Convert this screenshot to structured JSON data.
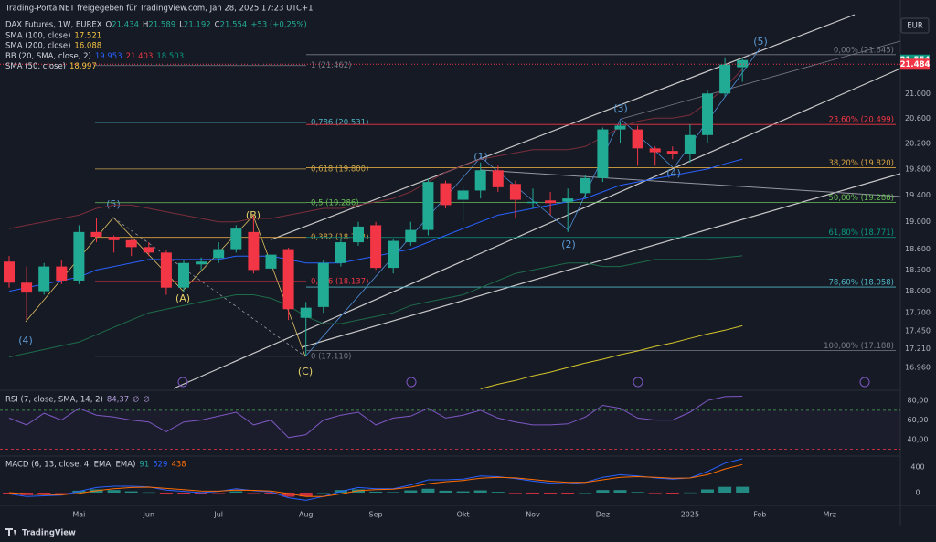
{
  "header": {
    "watermark": "Trading-PortalNET freigegeben für TradingView.com, Jan 28, 2025 17:23 UTC+1",
    "currency": "EUR",
    "footer": "TradingView"
  },
  "chart_data": [
    {
      "type": "candlestick",
      "title": "DAX Futures, 1W, EUREX",
      "ohlc_legend": {
        "labels": [
          "O",
          "H",
          "L",
          "C"
        ],
        "values": [
          21.434,
          21.589,
          21.192,
          21.554
        ],
        "change": "+53 (+0,25%)"
      },
      "indicators": [
        {
          "label": "SMA (100, close)",
          "values": [
            17.521
          ],
          "colors": [
            "#f5c542"
          ]
        },
        {
          "label": "SMA (200, close)",
          "values": [
            16.088
          ],
          "colors": [
            "#f5c542"
          ]
        },
        {
          "label": "BB (20, SMA, close, 2)",
          "values": [
            19.953,
            21.403,
            18.503
          ],
          "colors": [
            "#2962ff",
            "#f23645",
            "#089981"
          ]
        },
        {
          "label": "SMA (50, close)",
          "values": [
            18.997
          ],
          "colors": [
            "#f5c542"
          ]
        }
      ],
      "categories": [
        null,
        null,
        null,
        null,
        "Mai",
        null,
        null,
        null,
        "Jun",
        null,
        null,
        null,
        "Jul",
        null,
        null,
        null,
        null,
        "Aug",
        null,
        null,
        null,
        "Sep",
        null,
        null,
        null,
        null,
        "Okt",
        null,
        null,
        null,
        "Nov",
        null,
        null,
        null,
        "Dez",
        null,
        null,
        null,
        null,
        "2025",
        null,
        null,
        null,
        "Feb",
        null,
        null,
        null,
        "Mrz"
      ],
      "open": [
        18.42,
        18.12,
        18.0,
        18.35,
        18.15,
        18.85,
        18.78,
        18.73,
        18.63,
        18.55,
        18.05,
        18.38,
        18.47,
        18.6,
        18.85,
        18.32,
        18.6,
        17.63,
        17.78,
        18.4,
        18.7,
        18.95,
        18.33,
        18.7,
        18.88,
        19.58,
        19.33,
        19.47,
        19.78,
        19.57,
        19.28,
        19.32,
        19.3,
        19.43,
        19.66,
        20.42,
        20.42,
        20.12,
        20.08,
        20.03,
        20.33,
        21.0,
        21.434,
        null,
        null,
        null,
        null,
        null
      ],
      "high": [
        18.5,
        18.35,
        18.4,
        18.45,
        18.95,
        19.05,
        18.8,
        18.75,
        18.7,
        18.58,
        18.45,
        18.48,
        18.7,
        18.95,
        19.1,
        18.65,
        18.62,
        17.85,
        18.45,
        18.75,
        19.0,
        19.0,
        18.75,
        19.0,
        19.65,
        19.62,
        19.55,
        19.9,
        19.85,
        19.62,
        19.5,
        19.45,
        19.5,
        19.7,
        20.45,
        20.55,
        20.48,
        20.15,
        20.15,
        20.5,
        21.05,
        21.6,
        21.589,
        null,
        null,
        null,
        null,
        null
      ],
      "low": [
        18.05,
        17.6,
        17.95,
        18.1,
        18.1,
        18.7,
        18.55,
        18.5,
        18.5,
        17.95,
        17.98,
        18.3,
        18.4,
        18.55,
        18.25,
        18.25,
        17.6,
        17.11,
        17.7,
        18.35,
        18.65,
        18.3,
        18.25,
        18.65,
        18.8,
        19.2,
        19.0,
        19.35,
        19.45,
        19.05,
        19.2,
        19.1,
        18.85,
        19.35,
        19.6,
        20.2,
        19.85,
        19.85,
        19.95,
        19.9,
        20.2,
        20.95,
        21.192,
        null,
        null,
        null,
        null,
        null
      ],
      "close": [
        18.12,
        17.98,
        18.35,
        18.15,
        18.85,
        18.78,
        18.73,
        18.63,
        18.55,
        18.05,
        18.4,
        18.42,
        18.6,
        18.9,
        18.3,
        18.52,
        17.75,
        17.77,
        18.4,
        18.7,
        18.93,
        18.33,
        18.72,
        18.88,
        19.6,
        19.25,
        19.47,
        19.78,
        19.52,
        19.33,
        19.3,
        19.28,
        19.35,
        19.66,
        20.42,
        20.48,
        20.12,
        20.06,
        20.03,
        20.33,
        21.0,
        21.48,
        21.554,
        null,
        null,
        null,
        null,
        null
      ],
      "up_color": "#22ab94",
      "down_color": "#f23645",
      "overlays": [
        {
          "color": "#7a2e3a",
          "values": [
            18.9,
            18.95,
            19.0,
            19.05,
            19.1,
            19.2,
            19.25,
            19.25,
            19.2,
            19.15,
            19.1,
            19.05,
            19.0,
            19.0,
            19.05,
            19.05,
            19.1,
            19.15,
            19.2,
            19.2,
            19.25,
            19.3,
            19.35,
            19.45,
            19.6,
            19.75,
            19.85,
            19.95,
            20.0,
            20.05,
            20.1,
            20.1,
            20.1,
            20.15,
            20.3,
            20.45,
            20.55,
            20.6,
            20.6,
            20.65,
            20.85,
            21.1,
            21.403,
            null,
            null,
            null,
            null,
            null
          ]
        },
        {
          "color": "#2962ff",
          "values": [
            18.0,
            18.05,
            18.1,
            18.15,
            18.2,
            18.3,
            18.35,
            18.4,
            18.45,
            18.45,
            18.45,
            18.45,
            18.45,
            18.5,
            18.5,
            18.5,
            18.45,
            18.4,
            18.4,
            18.4,
            18.45,
            18.5,
            18.55,
            18.6,
            18.7,
            18.8,
            18.9,
            19.0,
            19.1,
            19.15,
            19.2,
            19.25,
            19.3,
            19.35,
            19.45,
            19.55,
            19.6,
            19.65,
            19.7,
            19.75,
            19.8,
            19.88,
            19.953,
            null,
            null,
            null,
            null,
            null
          ]
        },
        {
          "color": "#1e6b4a",
          "values": [
            17.1,
            17.15,
            17.2,
            17.25,
            17.3,
            17.4,
            17.5,
            17.6,
            17.7,
            17.75,
            17.8,
            17.85,
            17.9,
            17.95,
            17.95,
            17.9,
            17.8,
            17.65,
            17.55,
            17.55,
            17.6,
            17.65,
            17.7,
            17.8,
            17.85,
            17.9,
            17.95,
            18.05,
            18.15,
            18.25,
            18.3,
            18.35,
            18.4,
            18.4,
            18.35,
            18.35,
            18.4,
            18.45,
            18.45,
            18.45,
            18.45,
            18.48,
            18.503,
            null,
            null,
            null,
            null,
            null
          ]
        },
        {
          "color": "#d4c42a",
          "values": [
            null,
            null,
            null,
            null,
            null,
            null,
            null,
            null,
            null,
            null,
            null,
            null,
            null,
            null,
            null,
            null,
            null,
            null,
            null,
            null,
            null,
            null,
            null,
            null,
            null,
            null,
            null,
            16.68,
            16.74,
            16.79,
            16.85,
            16.9,
            16.96,
            17.02,
            17.07,
            17.13,
            17.18,
            17.24,
            17.29,
            17.35,
            17.41,
            17.46,
            17.521,
            null,
            null,
            null,
            null,
            null
          ]
        }
      ],
      "fib_left": [
        {
          "value": 21.462,
          "label": "1 (21.462)",
          "color": "#787b86"
        },
        {
          "value": 20.531,
          "label": "0,786 (20.531)",
          "color": "#4fb6c4"
        },
        {
          "value": 19.8,
          "label": "0,618 (19.800)",
          "color": "#c8a64a"
        },
        {
          "value": 19.286,
          "label": "0,5 (19.286)",
          "color": "#6bbf59"
        },
        {
          "value": 18.772,
          "label": "0,382 (18.772)",
          "color": "#d9a441"
        },
        {
          "value": 18.137,
          "label": "0,236 (18.137)",
          "color": "#f23645"
        },
        {
          "value": 17.11,
          "label": "0 (17.110)",
          "color": "#787b86"
        }
      ],
      "fib_right": [
        {
          "value": 21.645,
          "label": "0,00% (21.645)",
          "color": "#787b86"
        },
        {
          "value": 20.499,
          "label": "23,60% (20.499)",
          "color": "#f23645"
        },
        {
          "value": 19.82,
          "label": "38,20% (19.820)",
          "color": "#d9a441"
        },
        {
          "value": 19.288,
          "label": "50,00% (19.288)",
          "color": "#6bbf59"
        },
        {
          "value": 18.771,
          "label": "61,80% (18.771)",
          "color": "#089981"
        },
        {
          "value": 18.058,
          "label": "78,60% (18.058)",
          "color": "#4fb6c4"
        },
        {
          "value": 17.188,
          "label": "100,00% (17.188)",
          "color": "#787b86"
        }
      ],
      "annotations": [
        "(5)",
        "(4)",
        "(A)",
        "(B)",
        "(C)",
        "(1)",
        "(2)",
        "(3)",
        "(4)",
        "(5)"
      ],
      "price_tags": [
        {
          "value": 21.554,
          "color": "#089981"
        },
        {
          "value": 21.484,
          "color": "#f23645"
        }
      ],
      "log_scale": true,
      "ylim": [
        16.65,
        22.3
      ],
      "yticks": [
        {
          "value": 21.0,
          "label": "21.000"
        },
        {
          "value": 20.6,
          "label": "20.600"
        },
        {
          "value": 20.2,
          "label": "20.200"
        },
        {
          "value": 19.8,
          "label": "19.800"
        },
        {
          "value": 19.4,
          "label": "19.400"
        },
        {
          "value": 19.0,
          "label": "19.000"
        },
        {
          "value": 18.6,
          "label": "18.600"
        },
        {
          "value": 18.3,
          "label": "18.300"
        },
        {
          "value": 18.0,
          "label": "18.000"
        },
        {
          "value": 17.7,
          "label": "17.700"
        },
        {
          "value": 17.45,
          "label": "17.450"
        },
        {
          "value": 17.21,
          "label": "17.210"
        },
        {
          "value": 16.96,
          "label": "16.960"
        }
      ]
    },
    {
      "type": "line",
      "title": "RSI (7, close, SMA, 14, 2)",
      "legend_values": [
        {
          "value": 84.37,
          "label": "84,37"
        },
        "∅",
        "∅"
      ],
      "series": [
        {
          "color": "#7e57c2",
          "values": [
            62,
            55,
            67,
            60,
            72,
            65,
            63,
            60,
            58,
            48,
            58,
            60,
            64,
            68,
            55,
            60,
            42,
            45,
            60,
            65,
            68,
            55,
            62,
            64,
            72,
            62,
            65,
            70,
            62,
            58,
            55,
            55,
            56,
            63,
            75,
            72,
            62,
            60,
            60,
            68,
            80,
            84,
            84.37,
            null,
            null,
            null,
            null,
            null
          ]
        }
      ],
      "bands": [
        {
          "value": 70,
          "color": "#4caf50"
        },
        {
          "value": 30,
          "color": "#f23645"
        }
      ],
      "ylim": [
        25,
        89.5
      ],
      "yticks": [
        {
          "value": 80,
          "label": "80,00"
        },
        {
          "value": 60,
          "label": "60,00"
        },
        {
          "value": 40,
          "label": "40,00"
        }
      ]
    },
    {
      "type": "macd",
      "title": "MACD (6, 13, close, 4, EMA, EMA)",
      "series": [
        {
          "kind": "histogram",
          "color": "#26a69a",
          "neg_color": "#f23645",
          "values": [
            -20,
            -40,
            -20,
            -5,
            30,
            50,
            40,
            20,
            5,
            -25,
            -25,
            -25,
            -2,
            20,
            -6,
            -15,
            -65,
            -60,
            0,
            40,
            50,
            15,
            8,
            35,
            60,
            30,
            20,
            35,
            12,
            -10,
            -25,
            -28,
            -20,
            0,
            40,
            40,
            10,
            -10,
            -15,
            2,
            50,
            90,
            91,
            null,
            null,
            null,
            null,
            null
          ]
        },
        {
          "kind": "line",
          "color": "#2962ff",
          "values": [
            -20,
            -60,
            -50,
            -40,
            20,
            80,
            100,
            100,
            90,
            40,
            20,
            0,
            20,
            60,
            30,
            10,
            -80,
            -120,
            -60,
            20,
            80,
            60,
            60,
            120,
            200,
            200,
            210,
            260,
            250,
            220,
            180,
            150,
            140,
            160,
            240,
            280,
            260,
            230,
            210,
            230,
            330,
            460,
            529,
            null,
            null,
            null,
            null,
            null
          ]
        },
        {
          "kind": "line",
          "color": "#ff6d00",
          "values": [
            0,
            -20,
            -30,
            -35,
            -10,
            30,
            60,
            80,
            85,
            65,
            45,
            25,
            22,
            40,
            36,
            25,
            -15,
            -60,
            -60,
            -20,
            30,
            45,
            52,
            85,
            140,
            170,
            190,
            225,
            238,
            230,
            205,
            178,
            160,
            160,
            200,
            240,
            250,
            240,
            225,
            228,
            280,
            370,
            438,
            null,
            null,
            null,
            null,
            null
          ]
        }
      ],
      "legend_values": [
        91,
        529,
        438
      ],
      "ylim": [
        -186,
        557
      ],
      "yticks": [
        400,
        0
      ]
    }
  ]
}
